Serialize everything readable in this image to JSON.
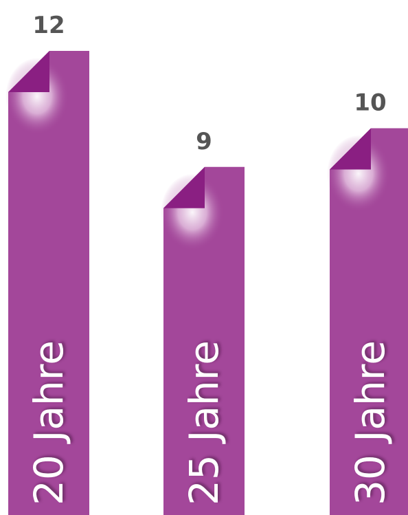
{
  "chart_data": {
    "type": "bar",
    "categories": [
      "20 Jahre",
      "25 Jahre",
      "30 Jahre"
    ],
    "values": [
      12,
      9,
      10
    ],
    "value_labels": [
      "12",
      "9",
      "10"
    ],
    "ylim": [
      0,
      12
    ],
    "grid": false,
    "legend": "none",
    "title": "",
    "xlabel": "",
    "ylabel": ""
  },
  "colors": {
    "bar": "#a3479a",
    "fold": "#8a1f82",
    "value_text": "#555555",
    "category_text": "#ffffff"
  }
}
